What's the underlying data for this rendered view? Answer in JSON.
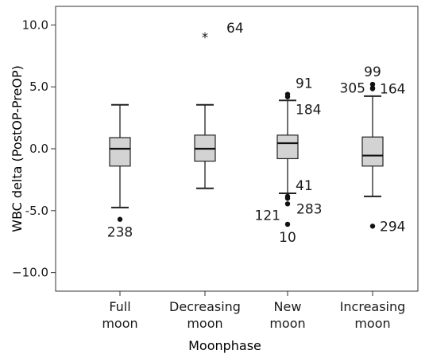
{
  "chart_data": {
    "type": "boxplot",
    "xlabel": "Moonphase",
    "ylabel": "WBC delta (PostOP-PreOP)",
    "ylim": [
      -11.5,
      11.5
    ],
    "y_ticks": [
      {
        "value": 10,
        "label": "10.0"
      },
      {
        "value": 5,
        "label": "5.0"
      },
      {
        "value": 0,
        "label": "0.0"
      },
      {
        "value": -5,
        "label": "-5.0"
      },
      {
        "value": -10,
        "label": "−10.0"
      }
    ],
    "box_fill": "#d3d3d3",
    "grid": false,
    "categories": [
      {
        "label_lines": [
          "Full",
          "moon"
        ],
        "whisker_low": -4.75,
        "q1": -1.4,
        "median": 0.0,
        "q3": 0.9,
        "whisker_high": 3.55,
        "outliers": [
          {
            "value": -5.7,
            "marker": "dot",
            "label": "238",
            "label_pos": "below"
          }
        ]
      },
      {
        "label_lines": [
          "Decreasing",
          "moon"
        ],
        "whisker_low": -3.2,
        "q1": -1.0,
        "median": 0.0,
        "q3": 1.1,
        "whisker_high": 3.55,
        "outliers": [
          {
            "value": 9.2,
            "marker": "star",
            "label": "64",
            "label_pos": "right-up"
          }
        ]
      },
      {
        "label_lines": [
          "New",
          "moon"
        ],
        "whisker_low": -3.6,
        "q1": -0.8,
        "median": 0.45,
        "q3": 1.1,
        "whisker_high": 3.9,
        "outliers": [
          {
            "value": 4.4,
            "marker": "dot",
            "label": "91",
            "label_pos": "above-right"
          },
          {
            "value": 4.2,
            "marker": "dot",
            "label": "184",
            "label_pos": "below-right"
          },
          {
            "value": -3.85,
            "marker": "dot",
            "label": "41",
            "label_pos": "above-right"
          },
          {
            "value": -4.0,
            "marker": "dot",
            "label": "121",
            "label_pos": "left-low"
          },
          {
            "value": -4.45,
            "marker": "dot",
            "label": "283",
            "label_pos": "right-low"
          },
          {
            "value": -6.1,
            "marker": "dot",
            "label": "10",
            "label_pos": "below"
          }
        ]
      },
      {
        "label_lines": [
          "Increasing",
          "moon"
        ],
        "whisker_low": -3.85,
        "q1": -1.4,
        "median": -0.55,
        "q3": 0.95,
        "whisker_high": 4.25,
        "outliers": [
          {
            "value": 5.2,
            "marker": "dot",
            "label": "99",
            "label_pos": "above"
          },
          {
            "value": 4.9,
            "marker": "dot",
            "label": "305",
            "label_pos": "left"
          },
          {
            "value": 4.85,
            "marker": "dot",
            "label": "164",
            "label_pos": "right"
          },
          {
            "value": -6.25,
            "marker": "dot",
            "label": "294",
            "label_pos": "right"
          }
        ]
      }
    ]
  }
}
